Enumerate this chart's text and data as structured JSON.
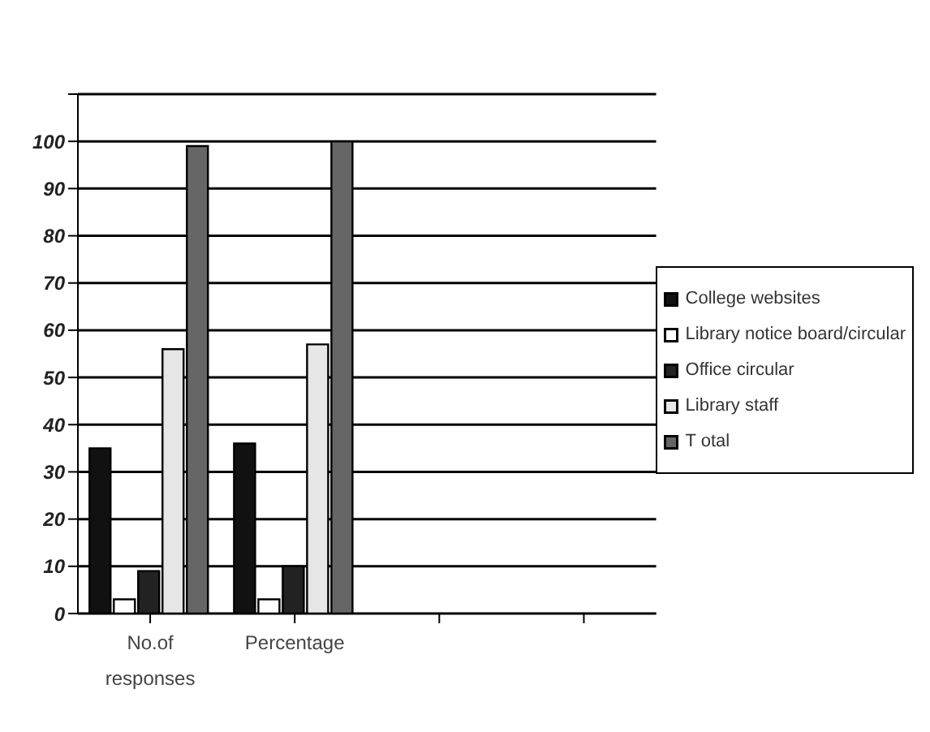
{
  "chart_data": {
    "type": "bar",
    "categories": [
      "No.of responses",
      "Percentage",
      null,
      null
    ],
    "series": [
      {
        "name": "College websites",
        "color": "#111111",
        "values": [
          35,
          36,
          null,
          null
        ]
      },
      {
        "name": "Library notice board/circular",
        "color": "#ffffff",
        "values": [
          3,
          3,
          null,
          null
        ]
      },
      {
        "name": "Office circular",
        "color": "#222222",
        "values": [
          9,
          10,
          null,
          null
        ]
      },
      {
        "name": "Library staff",
        "color": "#e6e6e6",
        "values": [
          56,
          57,
          null,
          null
        ]
      },
      {
        "name": "T otal",
        "color": "#666666",
        "values": [
          99,
          100,
          null,
          null
        ]
      }
    ],
    "ylim": [
      0,
      110
    ],
    "yticks": [
      0,
      10,
      20,
      30,
      40,
      50,
      60,
      70,
      80,
      90,
      100,
      {
        "value": 110,
        "label": null
      }
    ],
    "grid": "y",
    "legend": "right"
  }
}
